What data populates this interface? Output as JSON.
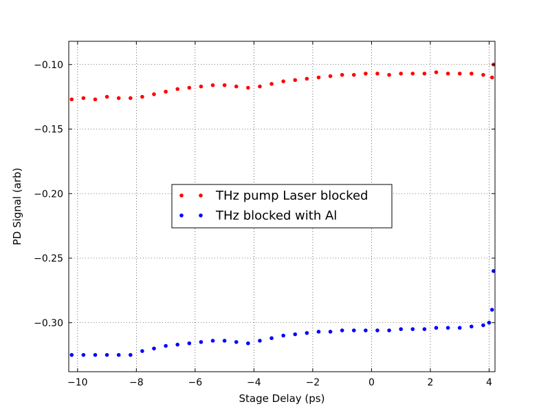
{
  "chart_data": {
    "type": "scatter",
    "title": "",
    "xlabel": "Stage Delay (ps)",
    "ylabel": "PD Signal (arb)",
    "xlim": [
      -10.3,
      4.2
    ],
    "ylim": [
      -0.338,
      -0.082
    ],
    "xticks": [
      -10,
      -8,
      -6,
      -4,
      -2,
      0,
      2,
      4
    ],
    "xtick_labels": [
      "−10",
      "−8",
      "−6",
      "−4",
      "−2",
      "0",
      "2",
      "4"
    ],
    "yticks": [
      -0.3,
      -0.25,
      -0.2,
      -0.15,
      -0.1
    ],
    "ytick_labels": [
      "−0.30",
      "−0.25",
      "−0.20",
      "−0.15",
      "−0.10"
    ],
    "grid": true,
    "legend_position": "center",
    "series": [
      {
        "name": "THz pump Laser blocked",
        "color": "#ff0000",
        "x": [
          -10.2,
          -9.8,
          -9.4,
          -9.0,
          -8.6,
          -8.2,
          -7.8,
          -7.4,
          -7.0,
          -6.6,
          -6.2,
          -5.8,
          -5.4,
          -5.0,
          -4.6,
          -4.2,
          -3.8,
          -3.4,
          -3.0,
          -2.6,
          -2.2,
          -1.8,
          -1.4,
          -1.0,
          -0.6,
          -0.2,
          0.2,
          0.6,
          1.0,
          1.4,
          1.8,
          2.2,
          2.6,
          3.0,
          3.4,
          3.8,
          4.1,
          4.15
        ],
        "y": [
          -0.127,
          -0.126,
          -0.127,
          -0.125,
          -0.126,
          -0.126,
          -0.125,
          -0.123,
          -0.121,
          -0.119,
          -0.118,
          -0.117,
          -0.116,
          -0.116,
          -0.117,
          -0.118,
          -0.117,
          -0.115,
          -0.113,
          -0.112,
          -0.111,
          -0.11,
          -0.109,
          -0.108,
          -0.108,
          -0.107,
          -0.107,
          -0.108,
          -0.107,
          -0.107,
          -0.107,
          -0.106,
          -0.107,
          -0.107,
          -0.107,
          -0.108,
          -0.11,
          -0.1
        ]
      },
      {
        "name": "THz blocked with Al",
        "color": "#0000ff",
        "x": [
          -10.2,
          -9.8,
          -9.4,
          -9.0,
          -8.6,
          -8.2,
          -7.8,
          -7.4,
          -7.0,
          -6.6,
          -6.2,
          -5.8,
          -5.4,
          -5.0,
          -4.6,
          -4.2,
          -3.8,
          -3.4,
          -3.0,
          -2.6,
          -2.2,
          -1.8,
          -1.4,
          -1.0,
          -0.6,
          -0.2,
          0.2,
          0.6,
          1.0,
          1.4,
          1.8,
          2.2,
          2.6,
          3.0,
          3.4,
          3.8,
          4.0,
          4.1,
          4.15
        ],
        "y": [
          -0.325,
          -0.325,
          -0.325,
          -0.325,
          -0.325,
          -0.325,
          -0.322,
          -0.32,
          -0.318,
          -0.317,
          -0.316,
          -0.315,
          -0.314,
          -0.314,
          -0.315,
          -0.316,
          -0.314,
          -0.312,
          -0.31,
          -0.309,
          -0.308,
          -0.307,
          -0.307,
          -0.306,
          -0.306,
          -0.306,
          -0.306,
          -0.306,
          -0.305,
          -0.305,
          -0.305,
          -0.304,
          -0.304,
          -0.304,
          -0.303,
          -0.302,
          -0.3,
          -0.29,
          -0.26
        ]
      }
    ]
  }
}
